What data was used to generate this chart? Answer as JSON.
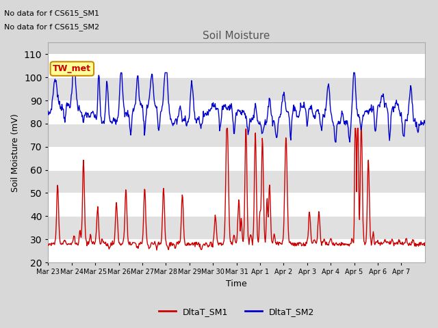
{
  "title": "Soil Moisture",
  "xlabel": "Time",
  "ylabel": "Soil Moisture (mV)",
  "ylim": [
    20,
    115
  ],
  "yticks": [
    20,
    30,
    40,
    50,
    60,
    70,
    80,
    90,
    100,
    110
  ],
  "annotation_lines": [
    "No data for f CS615_SM1",
    "No data for f CS615_SM2"
  ],
  "legend_labels": [
    "DltaT_SM1",
    "DltaT_SM2"
  ],
  "legend_colors": [
    "#cc0000",
    "#0000cc"
  ],
  "tw_met_box_color": "#ffff99",
  "tw_met_box_edge": "#cc8800",
  "background_color": "#d8d8d8",
  "plot_bg_color": "#d8d8d8",
  "grid_color": "#ffffff",
  "xtick_labels": [
    "Mar 23",
    "Mar 24",
    "Mar 25",
    "Mar 26",
    "Mar 27",
    "Mar 28",
    "Mar 29",
    "Mar 30",
    "Mar 31",
    "Apr 1",
    "Apr 2",
    "Apr 3",
    "Apr 4",
    "Apr 5",
    "Apr 6",
    "Apr 7"
  ]
}
